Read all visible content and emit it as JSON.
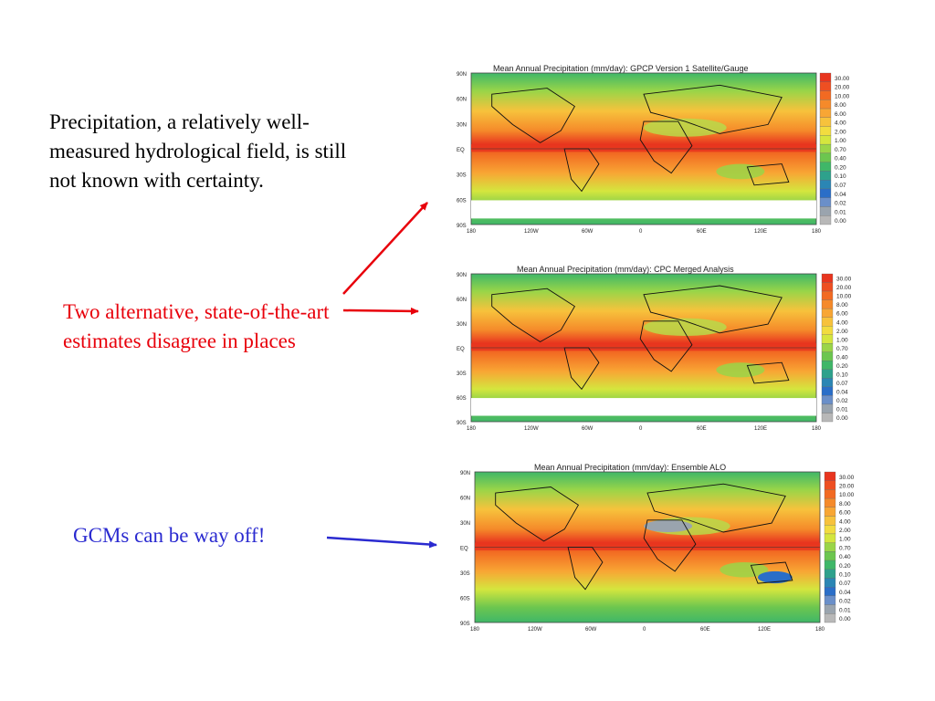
{
  "text": {
    "statement": "Precipitation, a relatively well-measured hydrological field, is still not known with certainty.",
    "alternatives": "Two alternative, state-of-the-art estimates disagree in places",
    "gcms": "GCMs can be way off!"
  },
  "colors": {
    "statement": "#000000",
    "alternatives": "#e8000b",
    "gcms": "#2a2ad0",
    "red_arrow": "#e8000b",
    "blue_arrow": "#2a2ad0"
  },
  "maps": [
    {
      "title": "Mean Annual Precipitation (mm/day): GPCP Version 1 Satellite/Gauge"
    },
    {
      "title": "Mean Annual Precipitation (mm/day): CPC Merged Analysis"
    },
    {
      "title": "Mean Annual Precipitation (mm/day): Ensemble ALO"
    }
  ],
  "lat_ticks": [
    "90N",
    "60N",
    "30N",
    "EQ",
    "30S",
    "60S",
    "90S"
  ],
  "lon_ticks": [
    "180",
    "120W",
    "60W",
    "0",
    "60E",
    "120E",
    "180"
  ],
  "colorbar": {
    "labels": [
      "30.00",
      "20.00",
      "10.00",
      "8.00",
      "6.00",
      "4.00",
      "2.00",
      "1.00",
      "0.70",
      "0.40",
      "0.20",
      "0.10",
      "0.07",
      "0.04",
      "0.02",
      "0.01",
      "0.00"
    ],
    "colors": [
      "#e8351f",
      "#ee4f22",
      "#f26a22",
      "#f58a2a",
      "#f8a634",
      "#f7c23c",
      "#f2dc3f",
      "#d4e63e",
      "#9ad548",
      "#6cc64f",
      "#3fb768",
      "#2ea18c",
      "#2b86b4",
      "#2a6ec8",
      "#6a8fc9",
      "#9aa4ae",
      "#b8b8b8"
    ]
  }
}
